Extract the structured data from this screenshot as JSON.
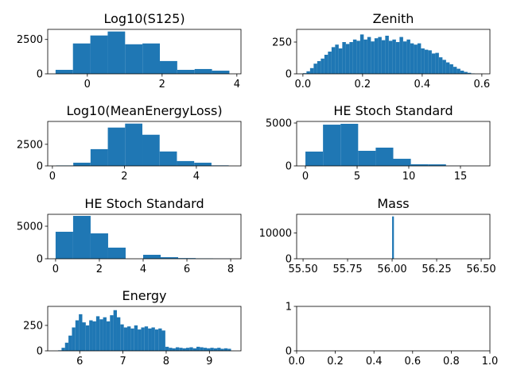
{
  "chart_data": [
    {
      "type": "histogram",
      "title": "Log10(S125)",
      "color": "#1f77b4",
      "bins": [
        -0.85,
        -0.385,
        0.08,
        0.545,
        1.01,
        1.475,
        1.94,
        2.405,
        2.87,
        3.335,
        3.8
      ],
      "values": [
        290,
        2210,
        2790,
        3080,
        2150,
        2210,
        930,
        290,
        350,
        230
      ],
      "xlim": [
        -1.06,
        4.11
      ],
      "xticks": [
        0,
        2,
        4
      ],
      "ylim": [
        0,
        3235
      ],
      "yticks": [
        0,
        2500
      ]
    },
    {
      "type": "histogram",
      "title": "Zenith",
      "color": "#1f77b4",
      "bins": [
        0,
        0.012,
        0.024,
        0.036,
        0.048,
        0.06,
        0.072,
        0.084,
        0.096,
        0.108,
        0.12,
        0.132,
        0.144,
        0.156,
        0.168,
        0.18,
        0.192,
        0.204,
        0.216,
        0.228,
        0.24,
        0.252,
        0.264,
        0.276,
        0.288,
        0.3,
        0.312,
        0.324,
        0.336,
        0.348,
        0.36,
        0.372,
        0.384,
        0.396,
        0.408,
        0.42,
        0.432,
        0.444,
        0.456,
        0.468,
        0.48,
        0.492,
        0.504,
        0.516,
        0.528,
        0.54,
        0.552,
        0.564,
        0.576
      ],
      "values": [
        5,
        20,
        45,
        80,
        100,
        120,
        150,
        175,
        210,
        230,
        200,
        250,
        235,
        250,
        270,
        260,
        310,
        270,
        290,
        255,
        280,
        290,
        265,
        300,
        260,
        270,
        250,
        290,
        255,
        270,
        240,
        230,
        240,
        200,
        190,
        185,
        160,
        165,
        130,
        110,
        90,
        75,
        55,
        40,
        25,
        15,
        8,
        3
      ],
      "xlim": [
        -0.021,
        0.627
      ],
      "xticks": [
        {
          "value": 0,
          "label": "0.0"
        },
        {
          "value": 0.2,
          "label": "0.2"
        },
        {
          "value": 0.4,
          "label": "0.4"
        },
        {
          "value": 0.6,
          "label": "0.6"
        }
      ],
      "ylim": [
        0,
        350
      ],
      "yticks": [
        0,
        250
      ]
    },
    {
      "type": "histogram",
      "title": "Log10(MeanEnergyLoss)",
      "color": "#1f77b4",
      "bins": [
        0.1,
        0.58,
        1.06,
        1.54,
        2.02,
        2.5,
        2.98,
        3.46,
        3.94,
        4.42,
        4.9
      ],
      "values": [
        50,
        370,
        1940,
        4440,
        4900,
        3610,
        1670,
        560,
        370,
        60
      ],
      "xlim": [
        -0.13,
        5.24
      ],
      "xticks": [
        0,
        2,
        4
      ],
      "ylim": [
        0,
        5150
      ],
      "yticks": [
        0,
        2500
      ]
    },
    {
      "type": "histogram",
      "title": "HE Stoch Standard",
      "color": "#1f77b4",
      "bins": [
        0,
        1.7,
        3.4,
        5.1,
        6.8,
        8.5,
        10.2,
        11.9,
        13.6,
        15.3,
        17
      ],
      "values": [
        1670,
        4810,
        4910,
        1760,
        2130,
        830,
        190,
        180,
        20,
        10
      ],
      "xlim": [
        -0.85,
        17.85
      ],
      "xticks": [
        0,
        5,
        10,
        15
      ],
      "ylim": [
        0,
        5185
      ],
      "yticks": [
        0,
        5000
      ]
    },
    {
      "type": "histogram",
      "title": "HE Stoch Standard",
      "color": "#1f77b4",
      "bins": [
        0,
        0.8,
        1.6,
        2.4,
        3.2,
        4,
        4.8,
        5.6,
        6.4,
        7.2,
        8
      ],
      "values": [
        4150,
        6585,
        3900,
        1710,
        0,
        610,
        240,
        100,
        60,
        30
      ],
      "xlim": [
        -0.36,
        8.47
      ],
      "xticks": [
        0,
        2,
        4,
        6,
        8
      ],
      "ylim": [
        0,
        6830
      ],
      "yticks": [
        0,
        5000
      ]
    },
    {
      "type": "histogram",
      "title": "Mass",
      "color": "#1f77b4",
      "bins": [
        55.5,
        55.51,
        55.52,
        55.53,
        55.54,
        55.55,
        55.56,
        55.57,
        55.58,
        55.59,
        55.6,
        55.61,
        55.62,
        55.63,
        55.64,
        55.65,
        55.66,
        55.67,
        55.68,
        55.69,
        55.7,
        55.71,
        55.72,
        55.73,
        55.74,
        55.75,
        55.76,
        55.77,
        55.78,
        55.79,
        55.8,
        55.81,
        55.82,
        55.83,
        55.84,
        55.85,
        55.86,
        55.87,
        55.88,
        55.89,
        55.9,
        55.91,
        55.92,
        55.93,
        55.94,
        55.95,
        55.96,
        55.97,
        55.98,
        55.99,
        56.0,
        56.01,
        56.02,
        56.03,
        56.04,
        56.05,
        56.06,
        56.07,
        56.08,
        56.09,
        56.1,
        56.11,
        56.12,
        56.13,
        56.14,
        56.15,
        56.16,
        56.17,
        56.18,
        56.19,
        56.2,
        56.21,
        56.22,
        56.23,
        56.24,
        56.25,
        56.26,
        56.27,
        56.28,
        56.29,
        56.3,
        56.31,
        56.32,
        56.33,
        56.34,
        56.35,
        56.36,
        56.37,
        56.38,
        56.39,
        56.4,
        56.41,
        56.42,
        56.43,
        56.44,
        56.45,
        56.46,
        56.47,
        56.48,
        56.49,
        56.5
      ],
      "values": [
        0,
        0,
        0,
        0,
        0,
        0,
        0,
        0,
        0,
        0,
        0,
        0,
        0,
        0,
        0,
        0,
        0,
        0,
        0,
        0,
        0,
        0,
        0,
        0,
        0,
        0,
        0,
        0,
        0,
        0,
        0,
        0,
        0,
        0,
        0,
        0,
        0,
        0,
        0,
        0,
        0,
        0,
        0,
        0,
        0,
        0,
        0,
        0,
        0,
        0,
        16360,
        0,
        0,
        0,
        0,
        0,
        0,
        0,
        0,
        0,
        0,
        0,
        0,
        0,
        0,
        0,
        0,
        0,
        0,
        0,
        0,
        0,
        0,
        0,
        0,
        0,
        0,
        0,
        0,
        0,
        0,
        0,
        0,
        0,
        0,
        0,
        0,
        0,
        0,
        0,
        0,
        0,
        0,
        0,
        0,
        0,
        0,
        0,
        0,
        0
      ],
      "xlim": [
        55.464,
        56.549
      ],
      "xticks": [
        {
          "value": 55.5,
          "label": "55.50"
        },
        {
          "value": 55.75,
          "label": "55.75"
        },
        {
          "value": 56,
          "label": "56.00"
        },
        {
          "value": 56.25,
          "label": "56.25"
        },
        {
          "value": 56.5,
          "label": "56.50"
        }
      ],
      "ylim": [
        0,
        17180
      ],
      "yticks": [
        0,
        10000
      ]
    },
    {
      "type": "histogram",
      "title": "Energy",
      "color": "#1f77b4",
      "bins": [
        5.5,
        5.58,
        5.66,
        5.74,
        5.82,
        5.9,
        5.98,
        6.06,
        6.14,
        6.22,
        6.3,
        6.38,
        6.46,
        6.54,
        6.62,
        6.7,
        6.78,
        6.86,
        6.94,
        7.02,
        7.1,
        7.18,
        7.26,
        7.34,
        7.42,
        7.5,
        7.58,
        7.66,
        7.74,
        7.82,
        7.9,
        7.98,
        8.06,
        8.14,
        8.22,
        8.3,
        8.38,
        8.46,
        8.54,
        8.62,
        8.7,
        8.78,
        8.86,
        8.94,
        9.02,
        9.1,
        9.18,
        9.26,
        9.34,
        9.42,
        9.5
      ],
      "values": [
        5,
        30,
        80,
        150,
        230,
        300,
        360,
        280,
        250,
        300,
        290,
        340,
        310,
        330,
        290,
        350,
        400,
        330,
        260,
        230,
        240,
        220,
        250,
        210,
        230,
        240,
        220,
        230,
        210,
        220,
        200,
        40,
        30,
        25,
        35,
        30,
        25,
        30,
        35,
        25,
        40,
        35,
        30,
        25,
        30,
        25,
        30,
        20,
        25,
        20
      ],
      "xlim": [
        5.26,
        9.73
      ],
      "xticks": [
        6,
        7,
        8,
        9
      ],
      "ylim": [
        0,
        437
      ],
      "yticks": [
        0,
        250
      ]
    },
    {
      "type": "empty",
      "xlim": [
        0,
        1
      ],
      "xticks": [
        {
          "value": 0,
          "label": "0.0"
        },
        {
          "value": 0.2,
          "label": "0.2"
        },
        {
          "value": 0.4,
          "label": "0.4"
        },
        {
          "value": 0.6,
          "label": "0.6"
        },
        {
          "value": 0.8,
          "label": "0.8"
        },
        {
          "value": 1,
          "label": "1.0"
        }
      ],
      "ylim": [
        0,
        1
      ],
      "yticks": [
        0,
        1
      ]
    }
  ]
}
